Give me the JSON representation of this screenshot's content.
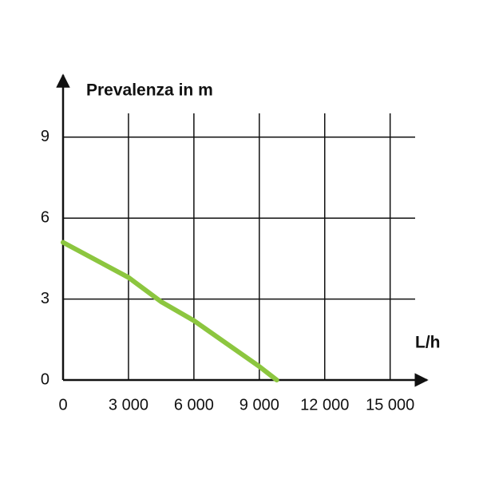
{
  "chart_data": {
    "type": "line",
    "y_label": "Prevalenza in m",
    "x_label": "L/h",
    "x": [
      0,
      3000,
      4500,
      6000,
      9000,
      9800
    ],
    "series": [
      {
        "color": "#8cc63f",
        "values": [
          5.1,
          3.8,
          2.9,
          2.2,
          0.5,
          0
        ]
      }
    ],
    "xlim": [
      0,
      16000
    ],
    "ylim": [
      0,
      10
    ],
    "xticks": [
      0,
      {
        "value": 3000,
        "label": "3 000"
      },
      {
        "value": 6000,
        "label": "6 000"
      },
      {
        "value": 9000,
        "label": "9 000"
      },
      {
        "value": 12000,
        "label": "12 000"
      },
      {
        "value": 15000,
        "label": "15 000"
      }
    ],
    "yticks": [
      0,
      3,
      6,
      9
    ],
    "grid": true
  }
}
